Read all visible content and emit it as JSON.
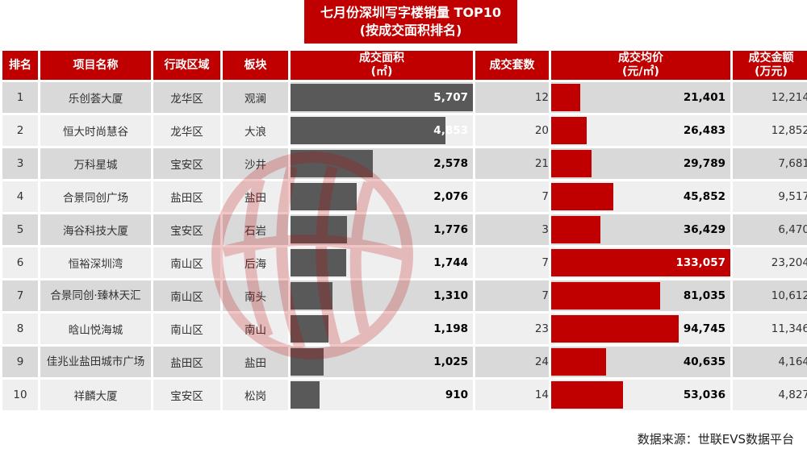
{
  "title": {
    "line1": "七月份深圳写字楼销量 TOP10",
    "line2": "(按成交面积排名)"
  },
  "headers": {
    "rank": "排名",
    "project": "项目名称",
    "district": "行政区域",
    "block": "板块",
    "area": "成交面积",
    "area_unit": "(㎡)",
    "units": "成交套数",
    "price": "成交均价",
    "price_unit": "(元/㎡)",
    "amount": "成交金额",
    "amount_unit": "(万元)"
  },
  "chart_data": {
    "type": "table",
    "columns": [
      "排名",
      "项目名称",
      "行政区域",
      "板块",
      "成交面积(㎡)",
      "成交套数",
      "成交均价(元/㎡)",
      "成交金额(万元)"
    ],
    "rows": [
      {
        "rank": "1",
        "project": "乐创荟大厦",
        "district": "龙华区",
        "block": "观澜",
        "area": 5707,
        "area_label": "5,707",
        "units": "12",
        "price": 21401,
        "price_label": "21,401",
        "amount": "12,214"
      },
      {
        "rank": "2",
        "project": "恒大时尚慧谷",
        "district": "龙华区",
        "block": "大浪",
        "area": 4853,
        "area_label": "4,853",
        "units": "20",
        "price": 26483,
        "price_label": "26,483",
        "amount": "12,852"
      },
      {
        "rank": "3",
        "project": "万科星城",
        "district": "宝安区",
        "block": "沙井",
        "area": 2578,
        "area_label": "2,578",
        "units": "21",
        "price": 29789,
        "price_label": "29,789",
        "amount": "7,681"
      },
      {
        "rank": "4",
        "project": "合景同创广场",
        "district": "盐田区",
        "block": "盐田",
        "area": 2076,
        "area_label": "2,076",
        "units": "7",
        "price": 45852,
        "price_label": "45,852",
        "amount": "9,517"
      },
      {
        "rank": "5",
        "project": "海谷科技大厦",
        "district": "宝安区",
        "block": "石岩",
        "area": 1776,
        "area_label": "1,776",
        "units": "3",
        "price": 36429,
        "price_label": "36,429",
        "amount": "6,470"
      },
      {
        "rank": "6",
        "project": "恒裕深圳湾",
        "district": "南山区",
        "block": "后海",
        "area": 1744,
        "area_label": "1,744",
        "units": "7",
        "price": 133057,
        "price_label": "133,057",
        "amount": "23,204"
      },
      {
        "rank": "7",
        "project": "合景同创·臻林天汇",
        "district": "南山区",
        "block": "南头",
        "area": 1310,
        "area_label": "1,310",
        "units": "7",
        "price": 81035,
        "price_label": "81,035",
        "amount": "10,612"
      },
      {
        "rank": "8",
        "project": "晗山悦海城",
        "district": "南山区",
        "block": "南山",
        "area": 1198,
        "area_label": "1,198",
        "units": "23",
        "price": 94745,
        "price_label": "94,745",
        "amount": "11,346"
      },
      {
        "rank": "9",
        "project": "佳兆业盐田城市广场",
        "district": "盐田区",
        "block": "盐田",
        "area": 1025,
        "area_label": "1,025",
        "units": "24",
        "price": 40635,
        "price_label": "40,635",
        "amount": "4,164"
      },
      {
        "rank": "10",
        "project": "祥麟大厦",
        "district": "宝安区",
        "block": "松岗",
        "area": 910,
        "area_label": "910",
        "units": "14",
        "price": 53036,
        "price_label": "53,036",
        "amount": "4,827"
      }
    ],
    "area_max": 5707,
    "price_max": 133057
  },
  "colors": {
    "header": "#c00000",
    "area_bar": "#595959",
    "price_bar": "#c00000"
  },
  "source": "数据来源：世联EVS数据平台"
}
